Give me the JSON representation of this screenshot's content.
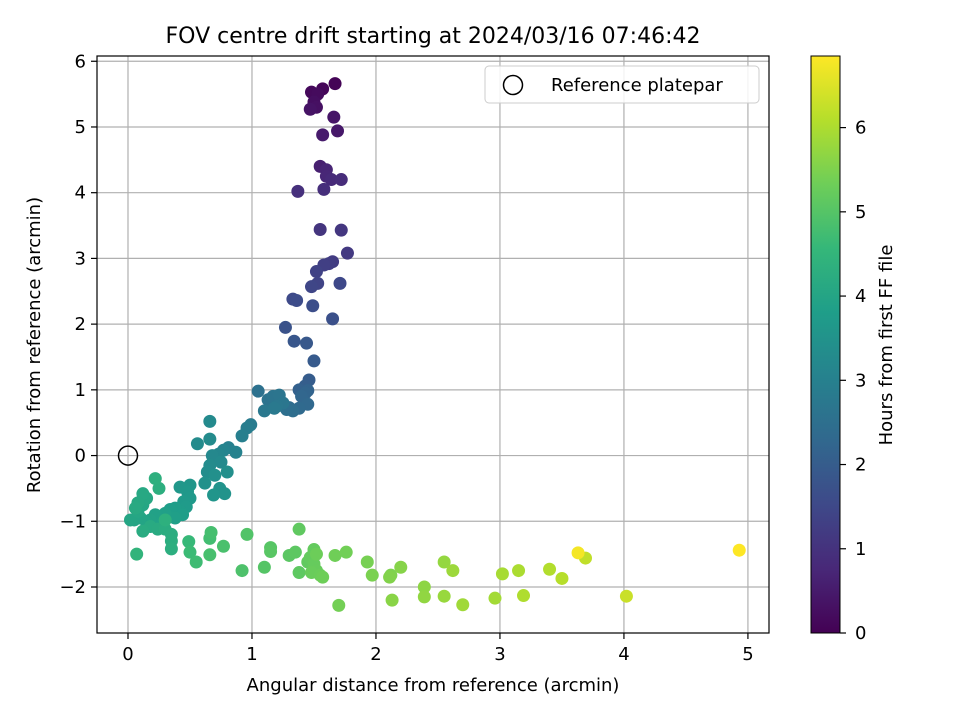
{
  "chart_data": {
    "type": "scatter",
    "title": "FOV centre drift starting at 2024/03/16 07:46:42",
    "xlabel": "Angular distance from reference (arcmin)",
    "ylabel": "Rotation from reference (arcmin)",
    "xlim": [
      -0.25,
      5.17
    ],
    "ylim": [
      -2.7,
      6.08
    ],
    "xticks": [
      0,
      1,
      2,
      3,
      4,
      5
    ],
    "yticks": [
      -2,
      -1,
      0,
      1,
      2,
      3,
      4,
      5,
      6
    ],
    "grid": true,
    "legend": {
      "position": "top-right",
      "entries": [
        "Reference platepar"
      ]
    },
    "reference_point": {
      "name": "Reference platepar",
      "x": 0,
      "y": 0
    },
    "colorbar": {
      "label": "Hours from first FF file",
      "min": 0,
      "max": 6.85,
      "ticks": [
        0,
        1,
        2,
        3,
        4,
        5,
        6
      ],
      "colormap": "viridis"
    },
    "points": [
      [
        1.67,
        5.66,
        0.05
      ],
      [
        1.57,
        5.58,
        0.1
      ],
      [
        1.48,
        5.53,
        0.15
      ],
      [
        1.53,
        5.5,
        0.2
      ],
      [
        1.5,
        5.38,
        0.25
      ],
      [
        1.52,
        5.3,
        0.3
      ],
      [
        1.47,
        5.27,
        0.35
      ],
      [
        1.66,
        5.15,
        0.4
      ],
      [
        1.69,
        4.94,
        0.45
      ],
      [
        1.57,
        4.88,
        0.5
      ],
      [
        1.55,
        4.4,
        0.6
      ],
      [
        1.6,
        4.35,
        0.7
      ],
      [
        1.6,
        4.25,
        0.75
      ],
      [
        1.64,
        4.2,
        0.8
      ],
      [
        1.72,
        4.2,
        0.85
      ],
      [
        1.58,
        4.05,
        0.9
      ],
      [
        1.37,
        4.02,
        0.95
      ],
      [
        1.55,
        3.44,
        1.05
      ],
      [
        1.72,
        3.43,
        1.1
      ],
      [
        1.77,
        3.08,
        1.15
      ],
      [
        1.65,
        2.95,
        1.2
      ],
      [
        1.62,
        2.92,
        1.25
      ],
      [
        1.58,
        2.9,
        1.3
      ],
      [
        1.52,
        2.8,
        1.35
      ],
      [
        1.53,
        2.62,
        1.4
      ],
      [
        1.48,
        2.57,
        1.45
      ],
      [
        1.71,
        2.62,
        1.5
      ],
      [
        1.33,
        2.38,
        1.55
      ],
      [
        1.36,
        2.36,
        1.6
      ],
      [
        1.49,
        2.28,
        1.65
      ],
      [
        1.65,
        2.08,
        1.7
      ],
      [
        1.27,
        1.95,
        1.75
      ],
      [
        1.34,
        1.74,
        1.85
      ],
      [
        1.44,
        1.71,
        1.9
      ],
      [
        1.5,
        1.44,
        1.95
      ],
      [
        1.46,
        1.15,
        2.0
      ],
      [
        1.43,
        1.06,
        2.05
      ],
      [
        1.38,
        1.0,
        2.1
      ],
      [
        1.45,
        0.99,
        2.15
      ],
      [
        1.43,
        0.95,
        2.2
      ],
      [
        1.4,
        0.9,
        2.25
      ],
      [
        1.45,
        0.78,
        2.3
      ],
      [
        1.38,
        0.72,
        2.35
      ],
      [
        1.3,
        0.73,
        2.4
      ],
      [
        1.33,
        0.68,
        2.45
      ],
      [
        1.28,
        0.7,
        2.5
      ],
      [
        1.05,
        0.98,
        2.55
      ],
      [
        1.13,
        0.85,
        2.6
      ],
      [
        1.17,
        0.9,
        2.62
      ],
      [
        1.22,
        0.92,
        2.65
      ],
      [
        1.25,
        0.8,
        2.7
      ],
      [
        1.2,
        0.75,
        2.72
      ],
      [
        1.1,
        0.68,
        2.75
      ],
      [
        1.18,
        0.72,
        2.78
      ],
      [
        0.99,
        0.47,
        2.85
      ],
      [
        0.96,
        0.42,
        2.9
      ],
      [
        0.92,
        0.3,
        2.95
      ],
      [
        0.81,
        0.12,
        3.0
      ],
      [
        0.87,
        0.05,
        3.05
      ],
      [
        0.77,
        0.08,
        3.1
      ],
      [
        0.73,
        0.02,
        3.15
      ],
      [
        0.68,
        0.0,
        3.2
      ],
      [
        0.75,
        -0.1,
        3.25
      ],
      [
        0.66,
        -0.15,
        3.3
      ],
      [
        0.64,
        -0.25,
        3.35
      ],
      [
        0.8,
        -0.25,
        3.4
      ],
      [
        0.7,
        -0.3,
        3.42
      ],
      [
        0.62,
        -0.42,
        3.45
      ],
      [
        0.74,
        -0.5,
        3.5
      ],
      [
        0.78,
        -0.58,
        3.52
      ],
      [
        0.69,
        -0.6,
        3.55
      ],
      [
        0.66,
        0.52,
        3.25
      ],
      [
        0.66,
        0.25,
        3.28
      ],
      [
        0.56,
        0.18,
        3.3
      ],
      [
        0.5,
        -0.45,
        3.6
      ],
      [
        0.42,
        -0.48,
        3.62
      ],
      [
        0.48,
        -0.55,
        3.65
      ],
      [
        0.5,
        -0.65,
        3.68
      ],
      [
        0.45,
        -0.7,
        3.7
      ],
      [
        0.47,
        -0.78,
        3.72
      ],
      [
        0.42,
        -0.85,
        3.75
      ],
      [
        0.38,
        -0.8,
        3.78
      ],
      [
        0.34,
        -0.82,
        3.8
      ],
      [
        0.44,
        -0.9,
        3.82
      ],
      [
        0.38,
        -0.95,
        3.84
      ],
      [
        0.3,
        -0.88,
        3.86
      ],
      [
        0.28,
        -1.0,
        3.88
      ],
      [
        0.22,
        -0.9,
        3.9
      ],
      [
        0.25,
        -1.05,
        3.92
      ],
      [
        0.18,
        -0.98,
        3.94
      ],
      [
        0.15,
        -1.02,
        3.96
      ],
      [
        0.1,
        -0.95,
        3.98
      ],
      [
        0.05,
        -0.98,
        4.0
      ],
      [
        0.02,
        -0.98,
        4.02
      ],
      [
        0.08,
        -0.85,
        4.04
      ],
      [
        0.12,
        -0.75,
        4.06
      ],
      [
        0.15,
        -0.65,
        4.08
      ],
      [
        0.12,
        -0.58,
        4.1
      ],
      [
        0.08,
        -0.72,
        4.12
      ],
      [
        0.06,
        -0.8,
        4.14
      ],
      [
        0.18,
        -1.08,
        4.16
      ],
      [
        0.24,
        -1.12,
        4.18
      ],
      [
        0.12,
        -1.15,
        4.2
      ],
      [
        0.3,
        -1.12,
        4.22
      ],
      [
        0.35,
        -1.2,
        4.24
      ],
      [
        0.35,
        -1.3,
        4.26
      ],
      [
        0.35,
        -1.42,
        4.28
      ],
      [
        0.25,
        -0.5,
        4.3
      ],
      [
        0.22,
        -0.35,
        4.32
      ],
      [
        0.3,
        -0.98,
        4.34
      ],
      [
        0.07,
        -1.5,
        4.45
      ],
      [
        0.49,
        -1.31,
        4.6
      ],
      [
        0.5,
        -1.47,
        4.65
      ],
      [
        0.55,
        -1.62,
        4.7
      ],
      [
        0.66,
        -1.26,
        4.75
      ],
      [
        0.67,
        -1.17,
        4.8
      ],
      [
        0.66,
        -1.51,
        4.82
      ],
      [
        0.77,
        -1.38,
        4.85
      ],
      [
        0.92,
        -1.75,
        4.9
      ],
      [
        0.96,
        -1.2,
        4.95
      ],
      [
        1.1,
        -1.7,
        5.0
      ],
      [
        1.15,
        -1.4,
        5.02
      ],
      [
        1.15,
        -1.46,
        5.05
      ],
      [
        1.3,
        -1.52,
        5.07
      ],
      [
        1.35,
        -1.47,
        5.1
      ],
      [
        1.38,
        -1.78,
        5.12
      ],
      [
        1.38,
        -1.12,
        5.14
      ],
      [
        1.45,
        -1.62,
        5.16
      ],
      [
        1.47,
        -1.55,
        5.18
      ],
      [
        1.5,
        -1.43,
        5.2
      ],
      [
        1.5,
        -1.65,
        5.22
      ],
      [
        1.52,
        -1.75,
        5.24
      ],
      [
        1.48,
        -1.78,
        5.26
      ],
      [
        1.55,
        -1.82,
        5.28
      ],
      [
        1.52,
        -1.5,
        5.3
      ],
      [
        1.57,
        -1.85,
        5.32
      ],
      [
        1.67,
        -1.52,
        5.34
      ],
      [
        1.76,
        -1.47,
        5.36
      ],
      [
        1.7,
        -2.28,
        5.38
      ],
      [
        1.93,
        -1.62,
        5.42
      ],
      [
        1.97,
        -1.82,
        5.46
      ],
      [
        2.12,
        -1.82,
        5.5
      ],
      [
        2.11,
        -1.85,
        5.54
      ],
      [
        2.2,
        -1.7,
        5.58
      ],
      [
        2.13,
        -2.2,
        5.62
      ],
      [
        2.39,
        -2.0,
        5.66
      ],
      [
        2.39,
        -2.15,
        5.7
      ],
      [
        2.55,
        -1.62,
        5.74
      ],
      [
        2.55,
        -2.14,
        5.78
      ],
      [
        2.62,
        -1.75,
        5.82
      ],
      [
        2.7,
        -2.27,
        5.86
      ],
      [
        2.96,
        -2.17,
        5.9
      ],
      [
        3.02,
        -1.8,
        5.94
      ],
      [
        3.15,
        -1.75,
        5.98
      ],
      [
        3.19,
        -2.13,
        6.02
      ],
      [
        3.4,
        -1.73,
        6.06
      ],
      [
        3.5,
        -1.87,
        6.1
      ],
      [
        3.69,
        -1.56,
        6.2
      ],
      [
        3.63,
        -1.48,
        6.75
      ],
      [
        4.02,
        -2.14,
        6.3
      ],
      [
        4.93,
        -1.44,
        6.85
      ]
    ]
  }
}
